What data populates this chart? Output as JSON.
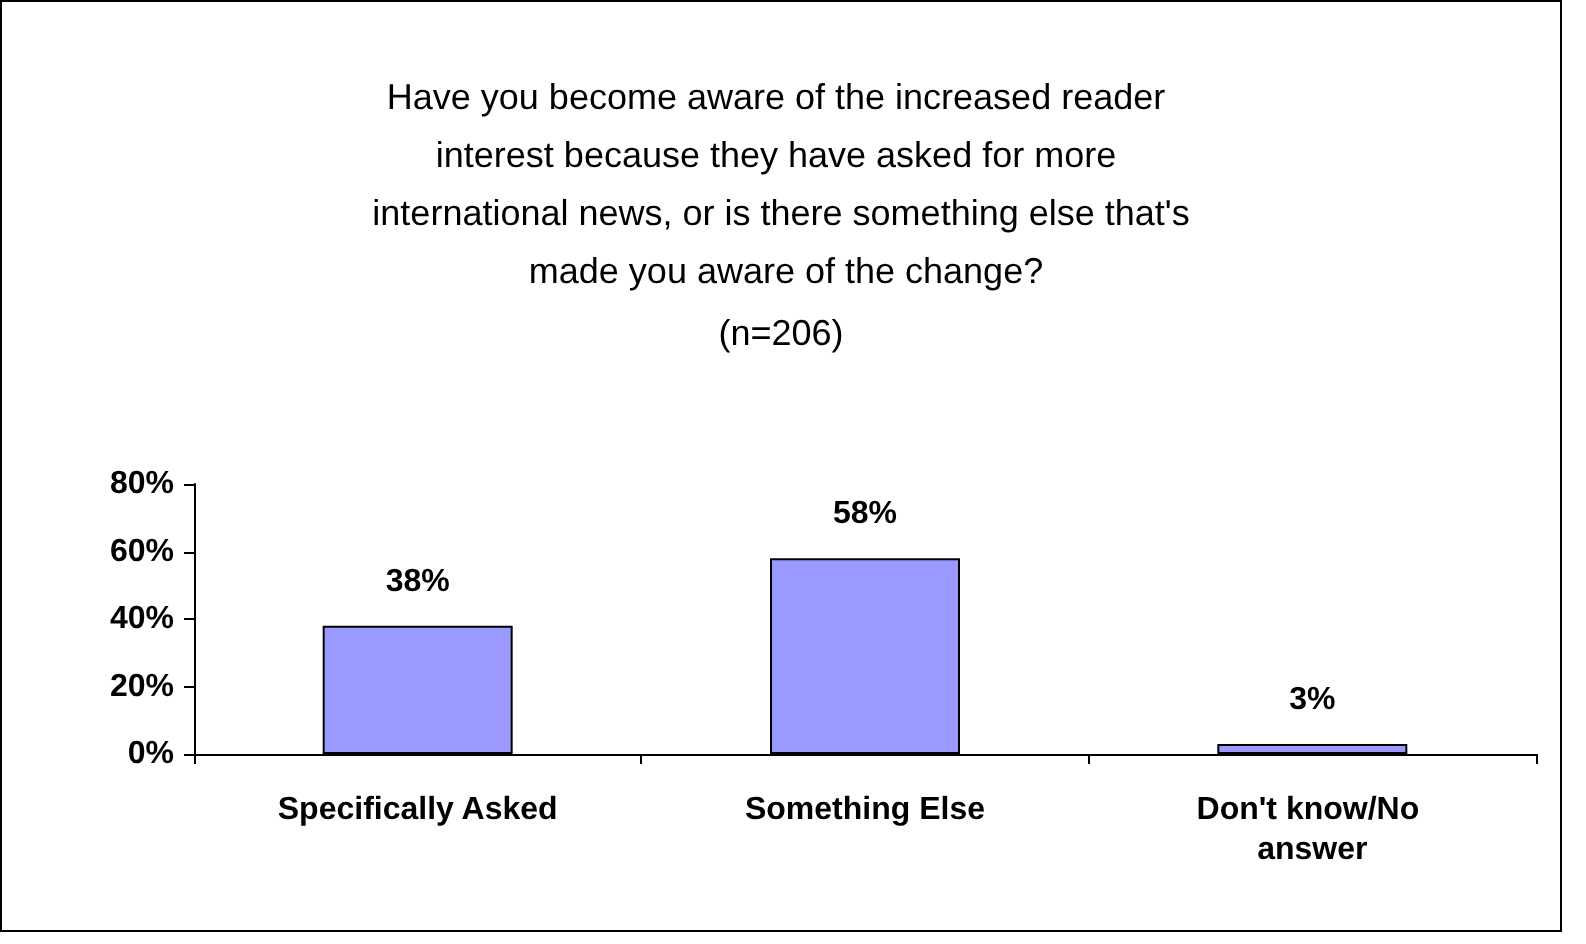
{
  "chart_data": {
    "type": "bar",
    "title": "Have you become aware of the increased reader interest because they have asked for more international news, or is there something else that's made you aware of the change?",
    "subtitle": "(n=206)",
    "categories": [
      "Specifically Asked",
      "Something Else",
      "Don't know/No answer"
    ],
    "values": [
      38,
      58,
      3
    ],
    "color": "#9999ff",
    "value_labels": [
      "38%",
      "58%",
      "3%"
    ],
    "ylim": [
      0,
      80
    ],
    "yticks": [
      {
        "value": 0,
        "label": "0%"
      },
      {
        "value": 20,
        "label": "20%"
      },
      {
        "value": 40,
        "label": "40%"
      },
      {
        "value": 60,
        "label": "60%"
      },
      {
        "value": 80,
        "label": "80%"
      }
    ],
    "grid": false
  }
}
